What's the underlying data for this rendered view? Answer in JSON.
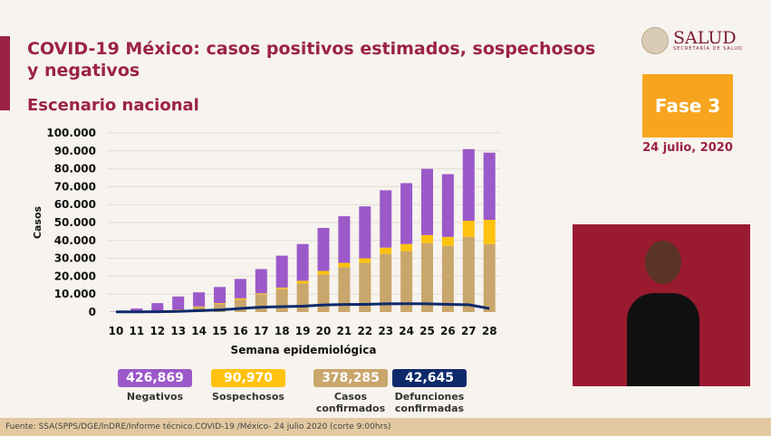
{
  "header": {
    "title": "COVID-19 México: casos positivos estimados, sospechosos y negativos",
    "subtitle": "Escenario nacional"
  },
  "logo": {
    "name": "SALUD",
    "tagline": "SECRETARÍA DE SALUD"
  },
  "phase": {
    "label": "Fase 3",
    "date": "24 julio, 2020",
    "color": "#f7a51e"
  },
  "summary": [
    {
      "value": "426,869",
      "label": "Negativos",
      "color": "#9b59c9"
    },
    {
      "value": "90,970",
      "label": "Sospechosos",
      "color": "#ffc20e"
    },
    {
      "value": "378,285",
      "label": "Casos confirmados",
      "color": "#c9a66b"
    },
    {
      "value": "42,645",
      "label": "Defunciones confirmadas",
      "color": "#0d2a6b"
    }
  ],
  "footer": {
    "source": "Fuente: SSA(SPPS/DGE/InDRE/Informe técnico.COVID-19 /México- 24 julio 2020 (corte 9:00hrs)"
  },
  "chart_data": {
    "type": "bar",
    "stacked": true,
    "xlabel": "Semana epidemiológica",
    "ylabel": "Casos",
    "ylim": [
      0,
      100000
    ],
    "yticks": [
      "0",
      "10.000",
      "20.000",
      "30.000",
      "40.000",
      "50.000",
      "60.000",
      "70.000",
      "80.000",
      "90.000",
      "100.000"
    ],
    "grid": true,
    "categories": [
      "10",
      "11",
      "12",
      "13",
      "14",
      "15",
      "16",
      "17",
      "18",
      "19",
      "20",
      "21",
      "22",
      "23",
      "24",
      "25",
      "26",
      "27",
      "28"
    ],
    "series": [
      {
        "name": "Casos confirmados",
        "color": "#c9a66b",
        "values": [
          100,
          300,
          800,
          1500,
          2800,
          4500,
          7000,
          10000,
          13000,
          16000,
          21000,
          25000,
          27500,
          32500,
          34000,
          38500,
          37000,
          42000,
          38000
        ]
      },
      {
        "name": "Sospechosos",
        "color": "#ffc20e",
        "values": [
          0,
          0,
          0,
          0,
          400,
          500,
          700,
          500,
          700,
          1500,
          2000,
          2500,
          2500,
          3500,
          4000,
          4500,
          5000,
          9000,
          13500
        ]
      },
      {
        "name": "Negativos",
        "color": "#9b59c9",
        "values": [
          200,
          1700,
          4200,
          7200,
          7800,
          9000,
          10800,
          13500,
          17800,
          20500,
          24000,
          26000,
          29000,
          32000,
          34000,
          37000,
          35000,
          40000,
          37500
        ]
      }
    ],
    "line": {
      "name": "Defunciones confirmadas",
      "color": "#0d2a6b",
      "values": [
        100,
        100,
        200,
        400,
        800,
        1200,
        2000,
        2700,
        3000,
        3300,
        4000,
        4200,
        4300,
        4600,
        4700,
        4600,
        4300,
        4100,
        2000
      ]
    }
  }
}
